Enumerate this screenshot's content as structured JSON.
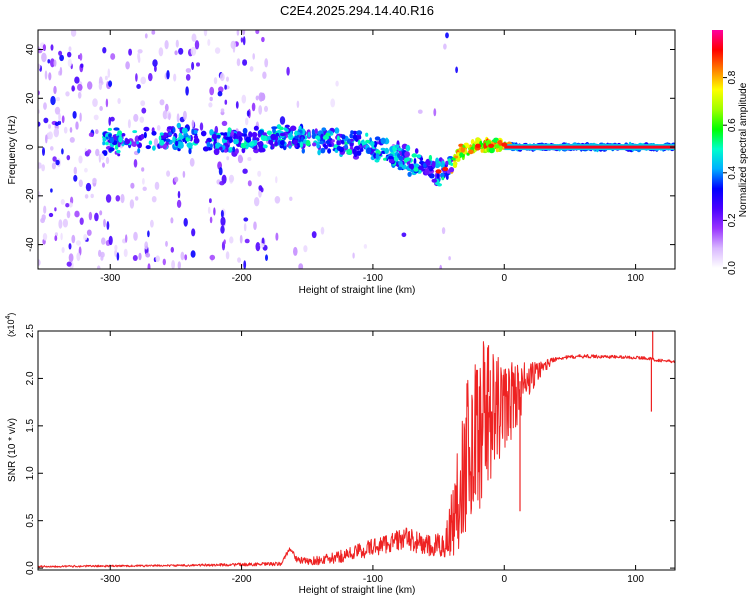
{
  "title": "C2E4.2025.294.14.40.R16",
  "chart_data": [
    {
      "type": "heatmap",
      "xlabel": "Height of straight line (km)",
      "ylabel": "Frequency (Hz)",
      "xlim": [
        -355,
        130
      ],
      "ylim": [
        -50,
        48
      ],
      "xticks": [
        -300,
        -200,
        -100,
        0,
        100
      ],
      "xtick_labels": [
        "-300",
        "-200",
        "-100",
        "0",
        "100"
      ],
      "yticks": [
        -40,
        -20,
        0,
        20,
        40
      ],
      "ytick_labels": [
        "-40",
        "-20",
        "0",
        "20",
        "40"
      ],
      "colorbar": {
        "label": "Normalized spectral amplitude",
        "range": [
          0,
          1
        ],
        "ticks": [
          0.0,
          0.2,
          0.4,
          0.6,
          0.8
        ],
        "tick_labels": [
          "0.0",
          "0.2",
          "0.4",
          "0.6",
          "0.8"
        ],
        "stops": [
          "#ffffff",
          "#d9b8ff",
          "#9933ff",
          "#4a00ff",
          "#0000ff",
          "#00b0ff",
          "#00ffcc",
          "#00ff00",
          "#a0ff00",
          "#ffff00",
          "#ff8000",
          "#ff0000",
          "#ff00a0"
        ]
      },
      "ridge": {
        "x": [
          -300,
          -260,
          -240,
          -220,
          -200,
          -180,
          -160,
          -140,
          -120,
          -100,
          -80,
          -70,
          -60,
          -50,
          -45,
          -40,
          -35,
          -30,
          -20,
          -10,
          0,
          10,
          40,
          80,
          130
        ],
        "y": [
          2,
          3,
          3,
          2,
          2,
          3,
          4,
          3,
          2,
          0,
          -4,
          -6,
          -8,
          -10,
          -9,
          -7,
          -3,
          -1,
          0.5,
          0.5,
          1,
          0,
          0,
          0,
          0
        ]
      }
    },
    {
      "type": "line",
      "xlabel": "Height of straight line (km)",
      "ylabel": "SNR (10 * v/v)",
      "multiplier_label": "(x10",
      "multiplier_exp": "4",
      "xlim": [
        -355,
        130
      ],
      "ylim": [
        -0.02,
        2.5
      ],
      "xticks": [
        -300,
        -200,
        -100,
        0,
        100
      ],
      "xtick_labels": [
        "-300",
        "-200",
        "-100",
        "0",
        "100"
      ],
      "yticks": [
        0.0,
        0.5,
        1.0,
        1.5,
        2.0,
        2.5
      ],
      "ytick_labels": [
        "0.0",
        "0.5",
        "1.0",
        "1.5",
        "2.0",
        "2.5"
      ],
      "series_color": "#ee2222",
      "envelope": {
        "x": [
          -355,
          -250,
          -170,
          -163,
          -158,
          -150,
          -130,
          -100,
          -75,
          -55,
          -45,
          -38,
          -30,
          -20,
          -15,
          -8,
          0,
          10,
          20,
          30,
          40,
          60,
          90,
          108,
          112,
          115,
          130
        ],
        "y": [
          0.02,
          0.03,
          0.05,
          0.22,
          0.1,
          0.08,
          0.12,
          0.25,
          0.35,
          0.25,
          0.3,
          0.7,
          1.4,
          1.7,
          1.9,
          1.8,
          1.85,
          1.95,
          2.05,
          2.15,
          2.22,
          2.24,
          2.23,
          2.22,
          2.21,
          2.2,
          2.18
        ]
      },
      "noise": {
        "x": [
          -355,
          -250,
          -170,
          -130,
          -100,
          -60,
          -45,
          -38,
          -30,
          -20,
          -10,
          0,
          10,
          25,
          40,
          130
        ],
        "amp": [
          0.01,
          0.01,
          0.02,
          0.06,
          0.1,
          0.12,
          0.15,
          0.5,
          0.8,
          0.9,
          0.7,
          0.5,
          0.35,
          0.1,
          0.02,
          0.015
        ]
      },
      "spikes": [
        {
          "x": -12,
          "y": 2.35
        },
        {
          "x": 12,
          "y": 0.6
        },
        {
          "x": 112,
          "y": 1.65
        },
        {
          "x": 113,
          "y": 2.5
        }
      ]
    }
  ]
}
